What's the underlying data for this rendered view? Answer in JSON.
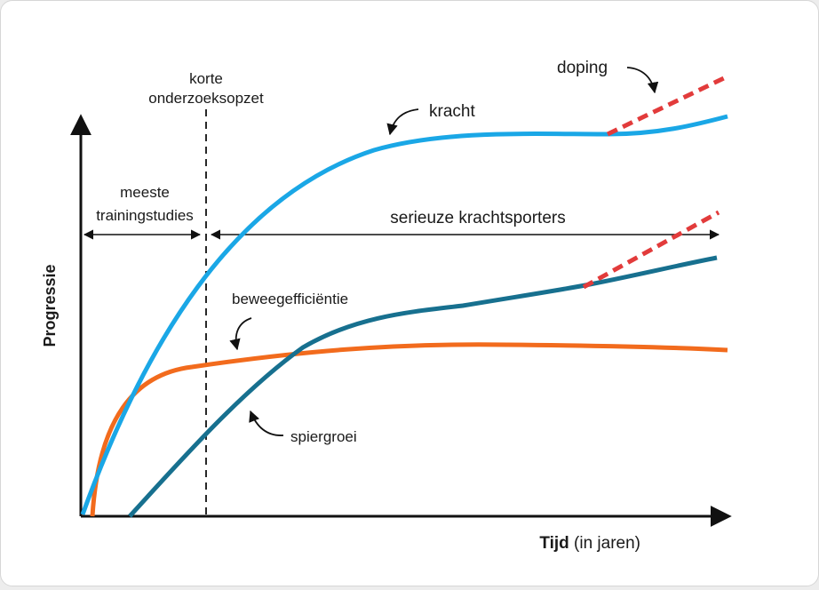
{
  "labels": {
    "y_axis": "Progressie",
    "x_axis_bold": "Tijd",
    "x_axis_normal": " (in jaren)",
    "korte_line1": "korte",
    "korte_line2": "onderzoeksopzet",
    "meeste_line1": "meeste",
    "meeste_line2": "trainingstudies",
    "serieuze": "serieuze krachtsporters",
    "kracht": "kracht",
    "doping": "doping",
    "beweeg": "beweegefficiëntie",
    "spiergroei": "spiergroei"
  },
  "colors": {
    "kracht": "#1aa7e6",
    "spiergroei": "#17708f",
    "beweegefficientie": "#f26b1d",
    "doping": "#e23b3b",
    "axis": "#111111"
  }
}
